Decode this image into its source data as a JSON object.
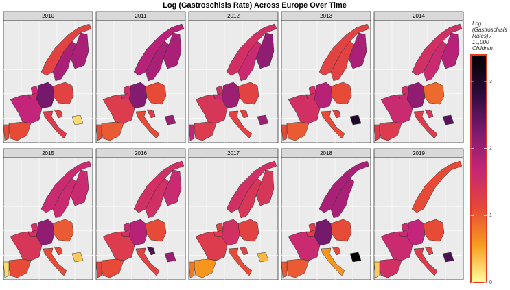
{
  "chart_data": {
    "type": "choropleth",
    "title": "Log (Gastroschisis Rate) Across Europe Over Time",
    "legend_title": "Log (Gastroschisis Rates) / 10,000 Children",
    "colorlim": [
      0,
      3.4
    ],
    "colorticks": [
      0,
      1,
      2,
      3
    ],
    "colors": [
      "#ffffa0",
      "#f89a1c",
      "#e6463a",
      "#c4247a",
      "#7a1a6f",
      "#2c0a3c",
      "#000000"
    ],
    "panels": [
      {
        "label": "2010",
        "values": [
          1.2,
          1.9,
          1.9,
          1.6,
          1.6,
          2.3,
          1.2,
          1.7,
          1.3,
          1.2,
          0.2,
          1.1,
          1.1
        ]
      },
      {
        "label": "2011",
        "values": [
          1.8,
          1.9,
          1.9,
          1.5,
          1.5,
          2.2,
          1.1,
          1.3,
          1.1,
          1.3,
          2.0,
          1.0,
          1.1
        ]
      },
      {
        "label": "2012",
        "values": [
          1.5,
          1.6,
          2.1,
          1.5,
          1.6,
          2.0,
          1.2,
          1.4,
          1.2,
          1.2,
          2.0,
          1.3,
          1.7
        ]
      },
      {
        "label": "2013",
        "values": [
          1.2,
          1.2,
          1.9,
          1.5,
          1.5,
          1.8,
          1.1,
          1.5,
          1.1,
          1.2,
          3.0,
          1.0,
          1.1
        ]
      },
      {
        "label": "2014",
        "values": [
          1.5,
          1.6,
          1.8,
          1.5,
          1.6,
          2.1,
          0.9,
          1.6,
          1.3,
          1.4,
          2.5,
          1.3,
          1.3
        ]
      },
      {
        "label": "2015",
        "values": [
          1.6,
          1.6,
          1.6,
          1.5,
          1.5,
          2.1,
          1.0,
          1.4,
          1.1,
          1.1,
          0.3,
          1.1,
          0.2
        ]
      },
      {
        "label": "2016",
        "values": [
          1.5,
          1.5,
          1.6,
          1.6,
          1.5,
          1.8,
          1.1,
          1.3,
          1.2,
          2.6,
          2.0,
          1.1,
          1.2
        ]
      },
      {
        "label": "2017",
        "values": [
          1.5,
          1.4,
          1.4,
          1.2,
          1.3,
          1.5,
          1.2,
          1.3,
          1.1,
          1.2,
          0.4,
          0.6,
          0.8
        ]
      },
      {
        "label": "2018",
        "values": [
          1.9,
          1.9,
          null,
          1.3,
          1.3,
          2.3,
          1.1,
          1.6,
          0.6,
          1.1,
          3.4,
          1.0,
          1.0
        ]
      },
      {
        "label": "2019",
        "values": [
          1.1,
          null,
          null,
          1.6,
          1.6,
          1.7,
          1.1,
          1.6,
          1.3,
          1.2,
          2.6,
          1.5,
          0.3
        ]
      }
    ]
  }
}
